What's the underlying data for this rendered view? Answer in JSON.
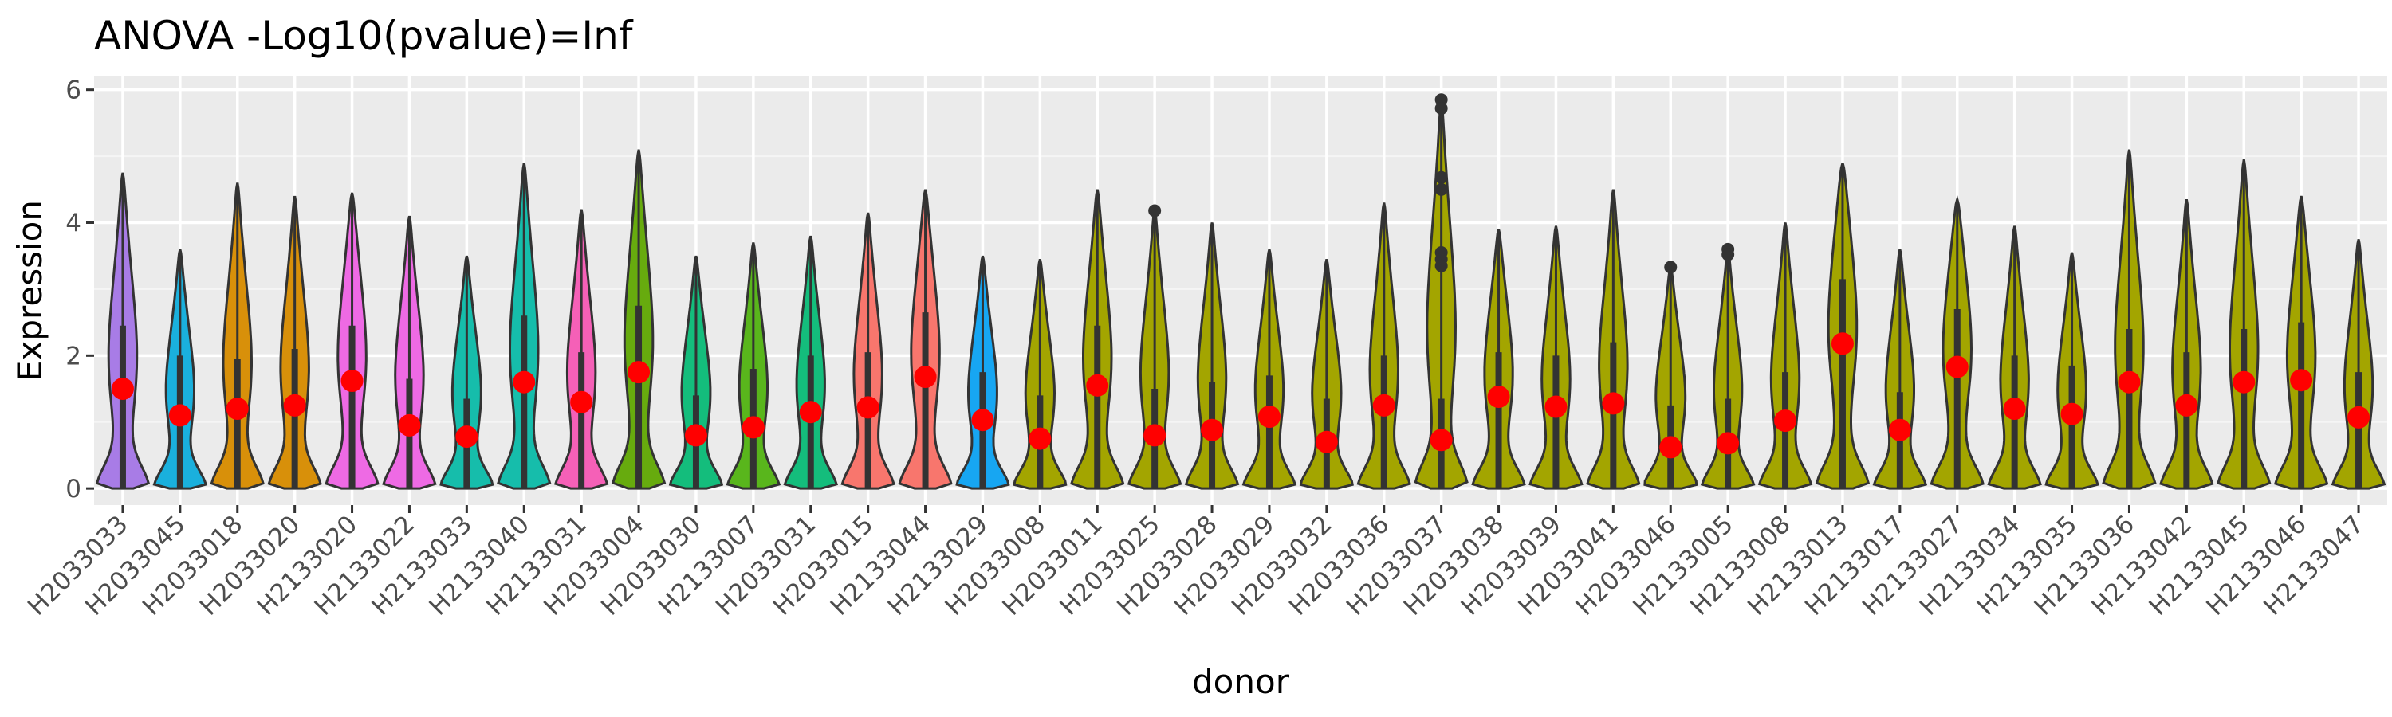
{
  "colors": {
    "panel_background": "#ebebeb",
    "grid_major": "#ffffff",
    "grid_minor": "#f5f5f5",
    "violin_outline": "#333333",
    "mean_point": "#ff0000",
    "olive_default": "#a3a500"
  },
  "chart_data": {
    "type": "violin",
    "title": "ANOVA -Log10(pvalue)=Inf",
    "xlabel": "donor",
    "ylabel": "Expression",
    "ylim": [
      -0.25,
      6.2
    ],
    "yticks": [
      0,
      2,
      4,
      6
    ],
    "grid": true,
    "legend": "none",
    "categories": [
      "H2033033",
      "H2033045",
      "H2033018",
      "H2033020",
      "H2133020",
      "H2133022",
      "H2133033",
      "H2133040",
      "H2133031",
      "H2033004",
      "H2033030",
      "H2133007",
      "H2033031",
      "H2033015",
      "H2133044",
      "H2133029",
      "H2033008",
      "H2033011",
      "H2033025",
      "H2033028",
      "H2033029",
      "H2033032",
      "H2033036",
      "H2033037",
      "H2033038",
      "H2033039",
      "H2033041",
      "H2033046",
      "H2133005",
      "H2133008",
      "H2133013",
      "H2133017",
      "H2133027",
      "H2133034",
      "H2133035",
      "H2133036",
      "H2133042",
      "H2133045",
      "H2133046",
      "H2133047"
    ],
    "fill_colors": [
      "#a87ce6",
      "#1ab0dd",
      "#d8900a",
      "#d8900a",
      "#ee6ae4",
      "#ee6ae4",
      "#16bdab",
      "#16bdab",
      "#f560b7",
      "#67ab0e",
      "#14bd7c",
      "#59b61c",
      "#14bd7c",
      "#f8766d",
      "#f8766d",
      "#17a6f2",
      "#a3a500",
      "#a3a500",
      "#a3a500",
      "#a3a500",
      "#a3a500",
      "#a3a500",
      "#a3a500",
      "#a3a500",
      "#a3a500",
      "#a3a500",
      "#a3a500",
      "#a3a500",
      "#a3a500",
      "#a3a500",
      "#a3a500",
      "#a3a500",
      "#a3a500",
      "#a3a500",
      "#a3a500",
      "#a3a500",
      "#a3a500",
      "#a3a500",
      "#a3a500",
      "#a3a500"
    ],
    "max": [
      4.75,
      3.6,
      4.6,
      4.4,
      4.45,
      4.1,
      3.5,
      4.9,
      4.2,
      5.1,
      3.5,
      3.7,
      3.8,
      4.15,
      4.5,
      3.5,
      3.45,
      4.5,
      4.2,
      4.0,
      3.6,
      3.45,
      4.3,
      5.85,
      3.9,
      3.95,
      4.5,
      3.35,
      3.6,
      4.0,
      4.9,
      3.6,
      4.35,
      3.95,
      3.55,
      5.1,
      4.35,
      4.95,
      4.4,
      3.75
    ],
    "mean": [
      1.5,
      1.1,
      1.2,
      1.25,
      1.62,
      0.95,
      0.78,
      1.6,
      1.3,
      1.75,
      0.8,
      0.92,
      1.15,
      1.22,
      1.68,
      1.03,
      0.75,
      1.55,
      0.8,
      0.88,
      1.08,
      0.7,
      1.25,
      0.73,
      1.38,
      1.23,
      1.28,
      0.62,
      0.68,
      1.02,
      2.18,
      0.88,
      1.83,
      1.2,
      1.12,
      1.6,
      1.25,
      1.6,
      1.63,
      1.07
    ],
    "upper_hinge": [
      2.45,
      2.0,
      1.95,
      2.1,
      2.45,
      1.65,
      1.35,
      2.6,
      2.05,
      2.75,
      1.4,
      1.8,
      2.0,
      2.05,
      2.65,
      1.75,
      1.4,
      2.45,
      1.5,
      1.6,
      1.7,
      1.35,
      2.0,
      1.35,
      2.05,
      2.0,
      2.2,
      1.25,
      1.35,
      1.75,
      3.15,
      1.45,
      2.7,
      2.0,
      1.85,
      2.4,
      2.05,
      2.4,
      2.5,
      1.75
    ],
    "outliers": [
      {
        "category": "H2033025",
        "values": [
          4.18
        ]
      },
      {
        "category": "H2033037",
        "values": [
          5.85,
          5.72,
          4.68,
          4.5,
          3.55,
          3.45,
          3.35
        ]
      },
      {
        "category": "H2033046",
        "values": [
          3.33
        ]
      },
      {
        "category": "H2133005",
        "values": [
          3.6,
          3.52
        ]
      }
    ]
  }
}
